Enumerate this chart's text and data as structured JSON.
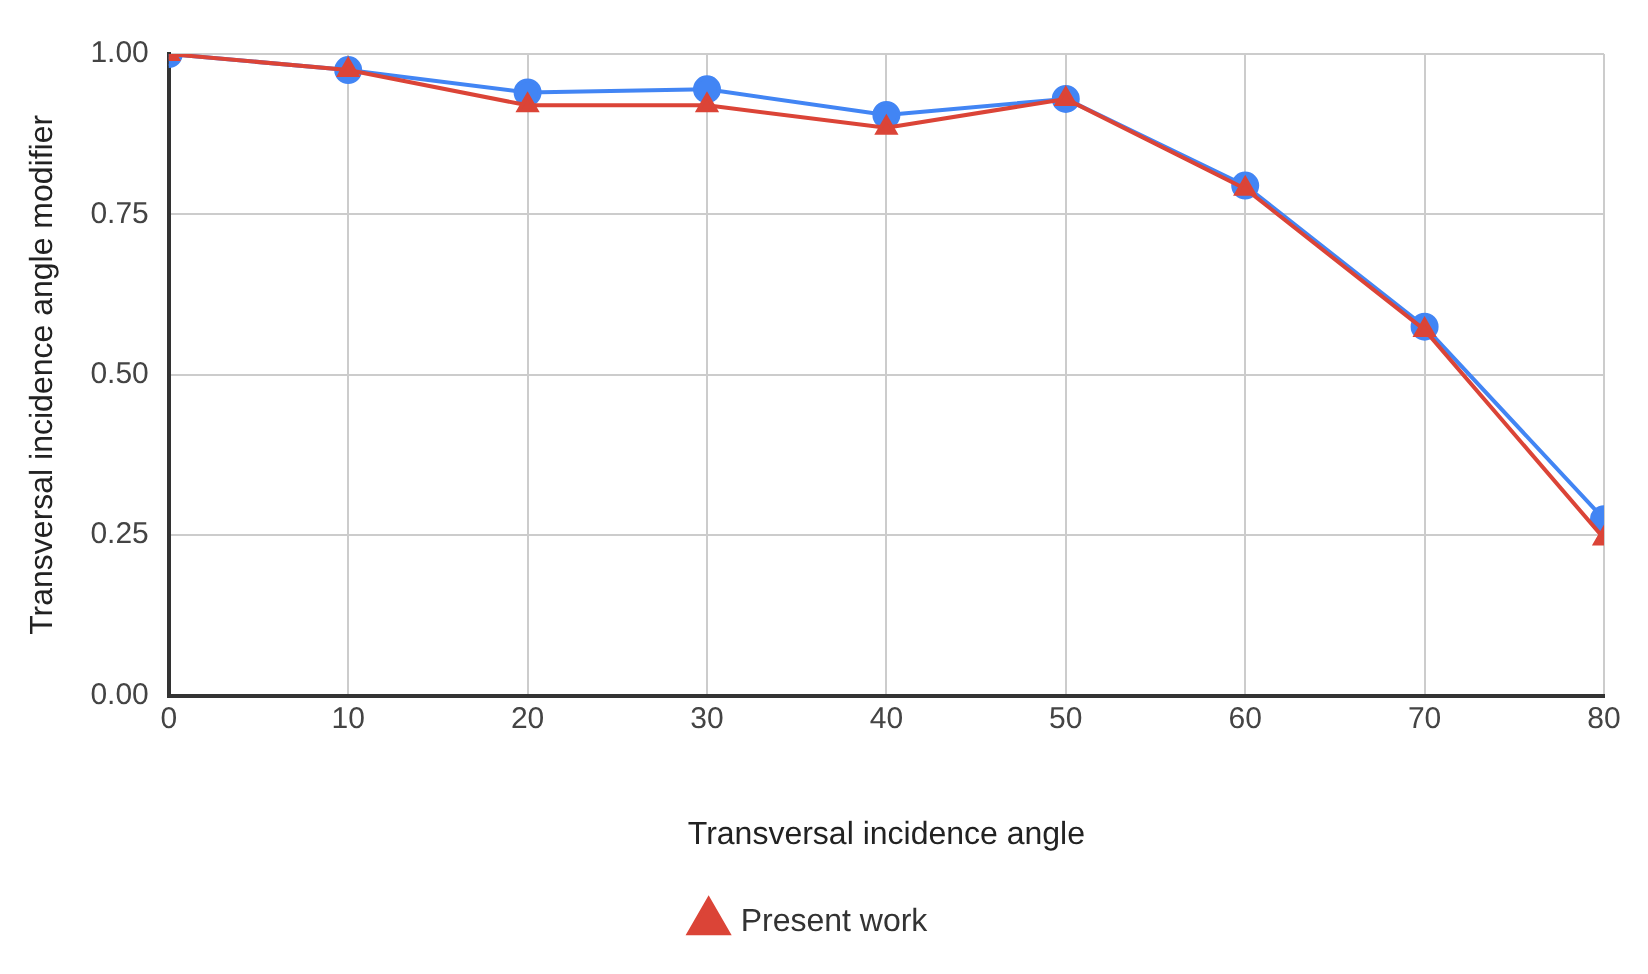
{
  "chart_data": {
    "type": "line",
    "xlabel": "Transversal incidence angle",
    "ylabel": "Transversal incidence angle modifier",
    "x": [
      0,
      10,
      20,
      30,
      40,
      50,
      60,
      70,
      80
    ],
    "xlim": [
      0,
      80
    ],
    "xticks": [
      0,
      10,
      20,
      30,
      40,
      50,
      60,
      70,
      80
    ],
    "ylim": [
      0,
      1
    ],
    "yticks": [
      {
        "value": 0,
        "label": "0.00"
      },
      {
        "value": 0.25,
        "label": "0.25"
      },
      {
        "value": 0.5,
        "label": "0.50"
      },
      {
        "value": 0.75,
        "label": "0.75"
      },
      {
        "value": 1,
        "label": "1.00"
      }
    ],
    "grid": true,
    "legend": "bottom",
    "line_style": "solid",
    "series": [
      {
        "color": "#4285f4",
        "marker": "circle",
        "values": [
          1.0,
          0.975,
          0.94,
          0.945,
          0.905,
          0.93,
          0.795,
          0.575,
          0.275
        ]
      },
      {
        "name": "Present work",
        "color": "#db4437",
        "marker": "triangle",
        "values": [
          1.0,
          0.975,
          0.92,
          0.92,
          0.885,
          0.93,
          0.79,
          0.57,
          0.245
        ]
      }
    ]
  }
}
